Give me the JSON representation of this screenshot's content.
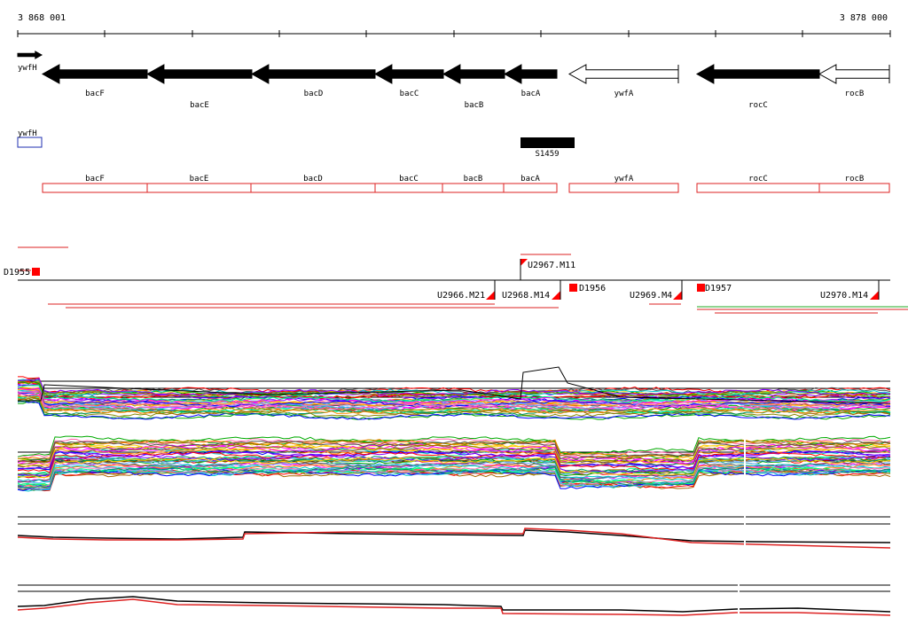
{
  "coords": {
    "start": "3 868 001",
    "end": "3 878 000"
  },
  "colors": {
    "gene_fill": "#000000",
    "rna_box": "#dd2222",
    "blue_box": "#1f2fb0",
    "probe_mark": "#ff0000",
    "profile_palette": [
      "#ff0000",
      "#00aa00",
      "#0000ff",
      "#ff00ff",
      "#00cccc",
      "#ff8800",
      "#888800",
      "#8800ff",
      "#00ff88",
      "#ff66aa",
      "#66aaff",
      "#aa6600",
      "#555555",
      "#ffcc00",
      "#009966"
    ]
  },
  "genes": [
    {
      "name": "ywfH",
      "strand": "+",
      "filled": true,
      "row": 0
    },
    {
      "name": "bacF",
      "strand": "-",
      "filled": true,
      "row": 1
    },
    {
      "name": "bacE",
      "strand": "-",
      "filled": true,
      "row": 2
    },
    {
      "name": "bacD",
      "strand": "-",
      "filled": true,
      "row": 1
    },
    {
      "name": "bacC",
      "strand": "-",
      "filled": true,
      "row": 1
    },
    {
      "name": "bacB",
      "strand": "-",
      "filled": true,
      "row": 2
    },
    {
      "name": "bacA",
      "strand": "-",
      "filled": true,
      "row": 1
    },
    {
      "name": "ywfA",
      "strand": "-",
      "filled": false,
      "row": 1
    },
    {
      "name": "rocC",
      "strand": "-",
      "filled": true,
      "row": 2
    },
    {
      "name": "rocB",
      "strand": "-",
      "filled": false,
      "row": 1
    }
  ],
  "extra_features": {
    "blue_label": "ywfH",
    "black_label": "S1459"
  },
  "rna_track": [
    "bacF",
    "bacE",
    "bacD",
    "bacC",
    "bacB",
    "bacA",
    "ywfA",
    "rocC",
    "rocB"
  ],
  "probes": [
    {
      "label": "D1955"
    },
    {
      "label": "U2967.M11"
    },
    {
      "label": "U2966.M21"
    },
    {
      "label": "U2968.M14"
    },
    {
      "label": "D1956"
    },
    {
      "label": "U2969.M4"
    },
    {
      "label": "D1957"
    },
    {
      "label": "U2970.M14"
    }
  ]
}
